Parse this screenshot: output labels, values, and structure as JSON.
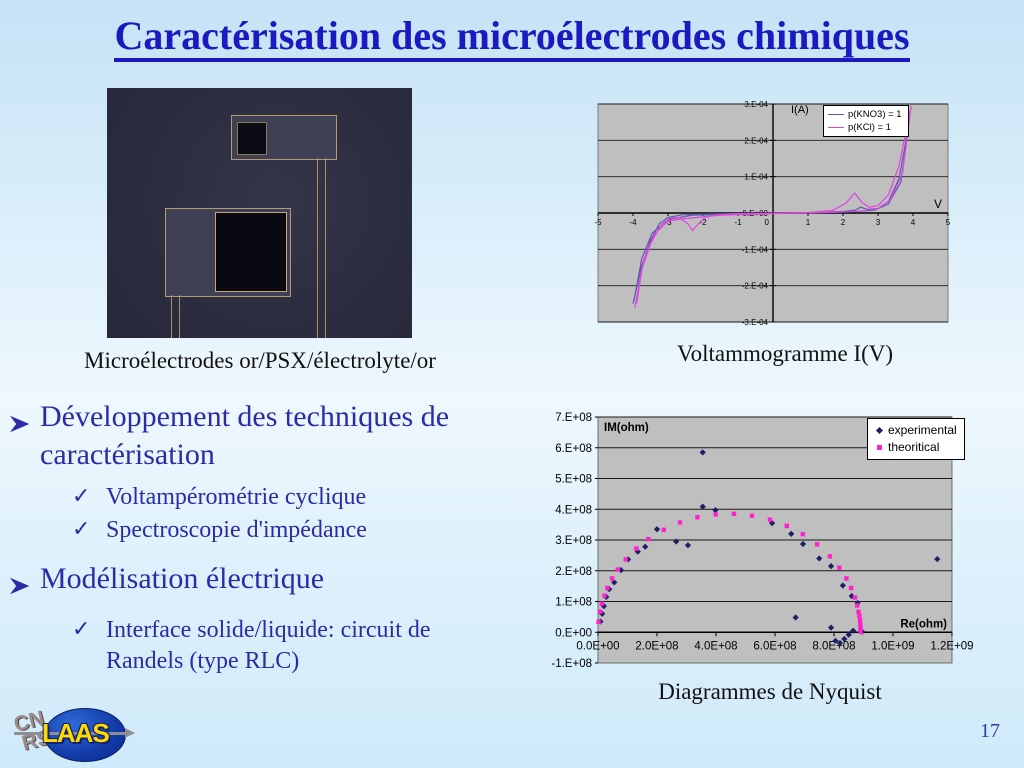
{
  "slide": {
    "title": "Caractérisation des microélectrodes chimiques",
    "photo_caption": "Microélectrodes or/PSX/électrolyte/or",
    "voltammogram_caption": "Voltammogramme I(V)",
    "nyquist_caption": "Diagrammes de Nyquist",
    "page_number": "17",
    "logo": {
      "cn": "CN",
      "rs": "RS",
      "laas": "LAAS"
    }
  },
  "icons": {
    "bullet_arrow": "arrow-right",
    "check": "✓"
  },
  "bullets": {
    "items": [
      {
        "level": 1,
        "text": "Développement des techniques de caractérisation"
      },
      {
        "level": 2,
        "text": "Voltampérométrie cyclique"
      },
      {
        "level": 2,
        "text": "Spectroscopie d'impédance"
      },
      {
        "level": 1,
        "text": "Modélisation électrique"
      },
      {
        "level": 2,
        "text": "Interface solide/liquide: circuit de Randels (type RLC)"
      }
    ]
  },
  "colors": {
    "title_blue": "#1a1ac0",
    "bullet_blue": "#2b2ba6",
    "plot_gray": "#bfbfbf",
    "kno3_line": "#5c5cb0",
    "kcl_line": "#e044e0",
    "experimental_navy": "#1f1f66",
    "theoretical_magenta": "#ff22cc"
  },
  "chart_data": [
    {
      "id": "voltammogram",
      "type": "line",
      "title": "Voltammogramme I(V)",
      "xlabel": "V",
      "ylabel": "I(A)",
      "xlim": [
        -5,
        5
      ],
      "ylim": [
        -0.0003,
        0.0003
      ],
      "grid": true,
      "legend_position": "top-right-inside",
      "plot_bg": "#bfbfbf",
      "xticks": [
        -5,
        -4,
        -3,
        -2,
        -1,
        0,
        1,
        2,
        3,
        4,
        5
      ],
      "ytick_values": [
        0.0003,
        0.0002,
        0.0001,
        0,
        -0.0001,
        -0.0002,
        -0.0003
      ],
      "ytick_labels": [
        "3.E-04",
        "2.E-04",
        "1.E-04",
        "0.E+00",
        "-1.E-04",
        "-2.E-04",
        "-3.E-04"
      ],
      "series": [
        {
          "name": "p(KNO3) = 1",
          "color": "#5c5cb0",
          "points": [
            [
              -4,
              -0.00025
            ],
            [
              -3.75,
              -0.000145
            ],
            [
              -3.5,
              -7.5e-05
            ],
            [
              -3.25,
              -3e-05
            ],
            [
              -3.0,
              -1.2e-05
            ],
            [
              -2.6,
              -5e-06
            ],
            [
              -2.0,
              -3e-06
            ],
            [
              -1.0,
              -1.5e-06
            ],
            [
              0,
              -5e-07
            ],
            [
              1,
              1e-06
            ],
            [
              2,
              4e-06
            ],
            [
              2.35,
              8e-06
            ],
            [
              2.5,
              1.6e-05
            ],
            [
              2.7,
              1e-05
            ],
            [
              3.0,
              1.2e-05
            ],
            [
              3.3,
              3.2e-05
            ],
            [
              3.6,
              9.5e-05
            ],
            [
              3.88,
              0.000242
            ],
            [
              3.65,
              8.5e-05
            ],
            [
              3.3,
              2.5e-05
            ],
            [
              2.9,
              8e-06
            ],
            [
              2.0,
              2e-06
            ],
            [
              0.5,
              0
            ],
            [
              -1.0,
              -3e-06
            ],
            [
              -2.3,
              -6e-06
            ],
            [
              -3.0,
              -1.8e-05
            ],
            [
              -3.45,
              -5.5e-05
            ],
            [
              -3.75,
              -0.000125
            ],
            [
              -3.97,
              -0.000242
            ]
          ]
        },
        {
          "name": "p(KCl) = 1",
          "color": "#e044e0",
          "points": [
            [
              -3.95,
              -0.000262
            ],
            [
              -3.75,
              -0.000155
            ],
            [
              -3.5,
              -8.5e-05
            ],
            [
              -3.2,
              -3.3e-05
            ],
            [
              -2.95,
              -1.4e-05
            ],
            [
              -2.7,
              -1.2e-05
            ],
            [
              -2.45,
              -2.8e-05
            ],
            [
              -2.3,
              -4.8e-05
            ],
            [
              -2.15,
              -3.2e-05
            ],
            [
              -1.95,
              -1.2e-05
            ],
            [
              -1.6,
              -5e-06
            ],
            [
              -1.0,
              -2e-06
            ],
            [
              0,
              -1e-06
            ],
            [
              1,
              1e-06
            ],
            [
              1.7,
              7e-06
            ],
            [
              2.1,
              2.8e-05
            ],
            [
              2.33,
              5.5e-05
            ],
            [
              2.55,
              2.8e-05
            ],
            [
              2.75,
              1.6e-05
            ],
            [
              3.0,
              2e-05
            ],
            [
              3.3,
              5e-05
            ],
            [
              3.6,
              0.00013
            ],
            [
              3.95,
              0.000295
            ],
            [
              3.7,
              0.00011
            ],
            [
              3.35,
              3.5e-05
            ],
            [
              3.0,
              1.2e-05
            ],
            [
              2.5,
              5e-06
            ],
            [
              1.5,
              2e-06
            ],
            [
              0,
              -2e-06
            ],
            [
              -1.5,
              -6e-06
            ],
            [
              -2.5,
              -1.5e-05
            ],
            [
              -3.0,
              -2.2e-05
            ],
            [
              -3.4,
              -6e-05
            ],
            [
              -3.7,
              -0.00013
            ],
            [
              -3.9,
              -0.00025
            ]
          ]
        }
      ]
    },
    {
      "id": "nyquist",
      "type": "scatter",
      "title": "Diagrammes de Nyquist",
      "xlabel": "Re(ohm)",
      "ylabel": "IM(ohm)",
      "xlim": [
        0,
        1200000000.0
      ],
      "ylim": [
        -100000000.0,
        700000000.0
      ],
      "grid": true,
      "legend_position": "top-right-inside",
      "plot_bg": "#bfbfbf",
      "xtick_values": [
        0,
        200000000.0,
        400000000.0,
        600000000.0,
        800000000.0,
        1000000000.0,
        1200000000.0
      ],
      "xtick_labels": [
        "0.0E+00",
        "2.0E+08",
        "4.0E+08",
        "6.0E+08",
        "8.0E+08",
        "1.0E+09",
        "1.2E+09"
      ],
      "ytick_values": [
        700000000.0,
        600000000.0,
        500000000.0,
        400000000.0,
        300000000.0,
        200000000.0,
        100000000.0,
        0,
        -100000000.0
      ],
      "ytick_labels": [
        "7.E+08",
        "6.E+08",
        "5.E+08",
        "4.E+08",
        "3.E+08",
        "2.E+08",
        "1.E+08",
        "0.E+00",
        "-1.E+08"
      ],
      "series": [
        {
          "name": "experimental",
          "marker": "diamond",
          "color": "#1f1f66",
          "points": [
            [
              8000000.0,
              35000000.0
            ],
            [
              14000000.0,
              60000000.0
            ],
            [
              20000000.0,
              85000000.0
            ],
            [
              28000000.0,
              115000000.0
            ],
            [
              38000000.0,
              140000000.0
            ],
            [
              55000000.0,
              162000000.0
            ],
            [
              78000000.0,
              202000000.0
            ],
            [
              102000000.0,
              237000000.0
            ],
            [
              135000000.0,
              262000000.0
            ],
            [
              160000000.0,
              278000000.0
            ],
            [
              200000000.0,
              335000000.0
            ],
            [
              265000000.0,
              295000000.0
            ],
            [
              305000000.0,
              283000000.0
            ],
            [
              355000000.0,
              408000000.0
            ],
            [
              355000000.0,
              585000000.0
            ],
            [
              398000000.0,
              397000000.0
            ],
            [
              590000000.0,
              355000000.0
            ],
            [
              655000000.0,
              320000000.0
            ],
            [
              695000000.0,
              287000000.0
            ],
            [
              750000000.0,
              240000000.0
            ],
            [
              790000000.0,
              215000000.0
            ],
            [
              830000000.0,
              152000000.0
            ],
            [
              860000000.0,
              118000000.0
            ],
            [
              880000000.0,
              95000000.0
            ],
            [
              670000000.0,
              48000000.0
            ],
            [
              790000000.0,
              15000000.0
            ],
            [
              805000000.0,
              -28000000.0
            ],
            [
              820000000.0,
              -35000000.0
            ],
            [
              835000000.0,
              -22000000.0
            ],
            [
              850000000.0,
              -8000000.0
            ],
            [
              865000000.0,
              5000000.0
            ],
            [
              895000000.0,
              2000000.0
            ],
            [
              1150000000.0,
              238000000.0
            ]
          ]
        },
        {
          "name": "theoritical",
          "marker": "square",
          "color": "#ff22cc",
          "points": [
            [
              2000000.0,
              34000000.0
            ],
            [
              7000000.0,
              67000000.0
            ],
            [
              13000000.0,
              93000000.0
            ],
            [
              22000000.0,
              119000000.0
            ],
            [
              32000000.0,
              144000000.0
            ],
            [
              48000000.0,
              175000000.0
            ],
            [
              67000000.0,
              204000000.0
            ],
            [
              94000000.0,
              237000000.0
            ],
            [
              130000000.0,
              272000000.0
            ],
            [
              171000000.0,
              303000000.0
            ],
            [
              223000000.0,
              333000000.0
            ],
            [
              278000000.0,
              357000000.0
            ],
            [
              337000000.0,
              374000000.0
            ],
            [
              399000000.0,
              383000000.0
            ],
            [
              461000000.0,
              385000000.0
            ],
            [
              522000000.0,
              379000000.0
            ],
            [
              583000000.0,
              366000000.0
            ],
            [
              640000000.0,
              346000000.0
            ],
            [
              694000000.0,
              319000000.0
            ],
            [
              743000000.0,
              286000000.0
            ],
            [
              786000000.0,
              247000000.0
            ],
            [
              818000000.0,
              210000000.0
            ],
            [
              842000000.0,
              175000000.0
            ],
            [
              858000000.0,
              144000000.0
            ],
            [
              871000000.0,
              113000000.0
            ],
            [
              879000000.0,
              87000000.0
            ],
            [
              883000000.0,
              67000000.0
            ],
            [
              886000000.0,
              54000000.0
            ],
            [
              888000000.0,
              40000000.0
            ],
            [
              889000000.0,
              27000000.0
            ],
            [
              890000000.0,
              17000000.0
            ],
            [
              890000000.0,
              7000000.0
            ],
            [
              890000000.0,
              2000000.0
            ]
          ]
        }
      ]
    }
  ]
}
